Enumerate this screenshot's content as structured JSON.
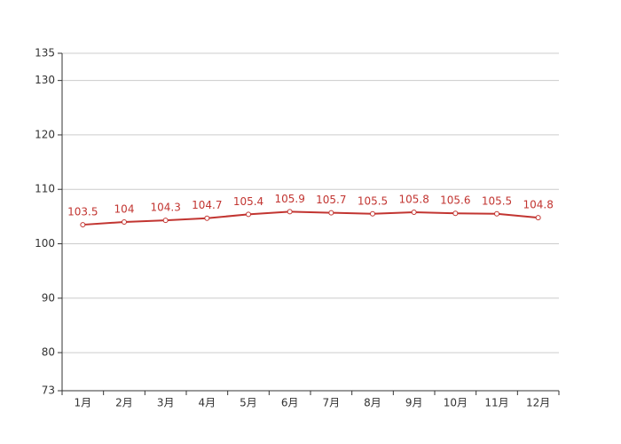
{
  "chart_data": {
    "type": "line",
    "categories": [
      "1月",
      "2月",
      "3月",
      "4月",
      "5月",
      "6月",
      "7月",
      "8月",
      "9月",
      "10月",
      "11月",
      "12月"
    ],
    "series": [
      {
        "color": "#c23531",
        "values": [
          103.5,
          104,
          104.3,
          104.7,
          105.4,
          105.9,
          105.7,
          105.5,
          105.8,
          105.6,
          105.5,
          104.8
        ]
      }
    ],
    "ylim": [
      73,
      135
    ],
    "yticks": [
      73,
      80,
      90,
      100,
      110,
      120,
      130,
      135
    ],
    "grid": true,
    "data_labels": true
  }
}
